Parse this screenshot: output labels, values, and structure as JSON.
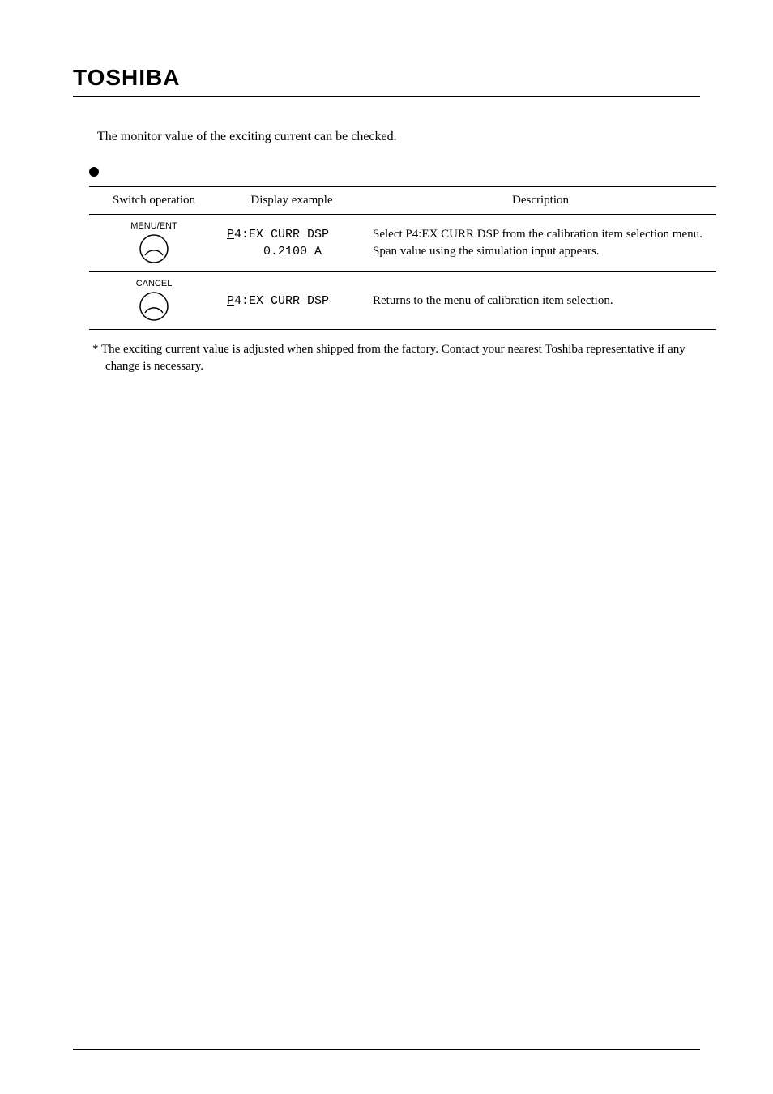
{
  "logo_text": "TOSHIBA",
  "intro_text": "The monitor value of the exciting current can be checked.",
  "table": {
    "headers": {
      "switch": "Switch operation",
      "display": "Display example",
      "desc": "Description"
    },
    "rows": [
      {
        "switch_label": "MENU/ENT",
        "display_line1_u": "P",
        "display_line1_rest": "4:EX CURR DSP",
        "display_line2": "     0.2100 A",
        "desc": "Select P4:EX CURR DSP from the calibration item selection menu.\nSpan value using the simulation input appears."
      },
      {
        "switch_label": "CANCEL",
        "display_line1_u": "P",
        "display_line1_rest": "4:EX CURR DSP",
        "display_line2": "",
        "desc": "Returns to the menu of calibration item selection."
      }
    ]
  },
  "footnote": "*  The exciting current value is adjusted when shipped from the factory. Contact your nearest Toshiba representative if any change is necessary.",
  "svg": {
    "circle_stroke": "#000000",
    "circle_fill": "#ffffff",
    "arc_stroke": "#000000"
  }
}
